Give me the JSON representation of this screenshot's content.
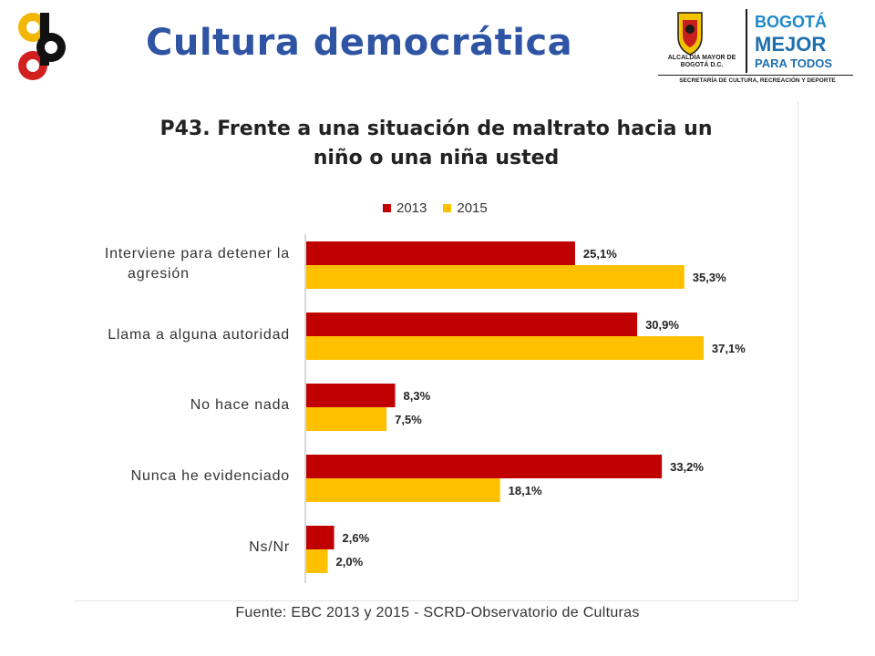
{
  "slide": {
    "title": "Cultura democrática",
    "source": "Fuente: EBC  2013 y 2015 - SCRD-Observatorio  de Culturas",
    "logo_right": {
      "alcaldia": "ALCALDÍA MAYOR DE BOGOTÁ D.C.",
      "bogota": "BOGOTÁ",
      "mejor": "MEJOR",
      "para_todos": "PARA TODOS",
      "secretaria": "SECRETARÍA DE CULTURA, RECREACIÓN Y DEPORTE"
    }
  },
  "chart_data": {
    "type": "bar",
    "orientation": "horizontal",
    "title_lines": [
      "P43. Frente a una situación de maltrato hacia un",
      "niño o una niña usted"
    ],
    "categories": [
      "Interviene para detener la agresión",
      "Llama a alguna autoridad",
      "No hace nada",
      "Nunca he evidenciado",
      "Ns/Nr"
    ],
    "category_label_lines": [
      [
        "Interviene para detener la",
        "agresión"
      ],
      [
        "Llama a alguna autoridad"
      ],
      [
        "No hace nada"
      ],
      [
        "Nunca he evidenciado"
      ],
      [
        "Ns/Nr"
      ]
    ],
    "series": [
      {
        "name": "2013",
        "color": "#c00000",
        "values": [
          25.1,
          30.9,
          8.3,
          33.2,
          2.6
        ],
        "labels": [
          "25,1%",
          "30,9%",
          "8,3%",
          "33,2%",
          "2,6%"
        ]
      },
      {
        "name": "2015",
        "color": "#ffc000",
        "values": [
          35.3,
          37.1,
          7.5,
          18.1,
          2.0
        ],
        "labels": [
          "35,3%",
          "37,1%",
          "7,5%",
          "18,1%",
          "2,0%"
        ]
      }
    ],
    "value_unit": "%",
    "xlim": [
      0,
      40
    ],
    "legend_position": "top",
    "grid": false
  }
}
